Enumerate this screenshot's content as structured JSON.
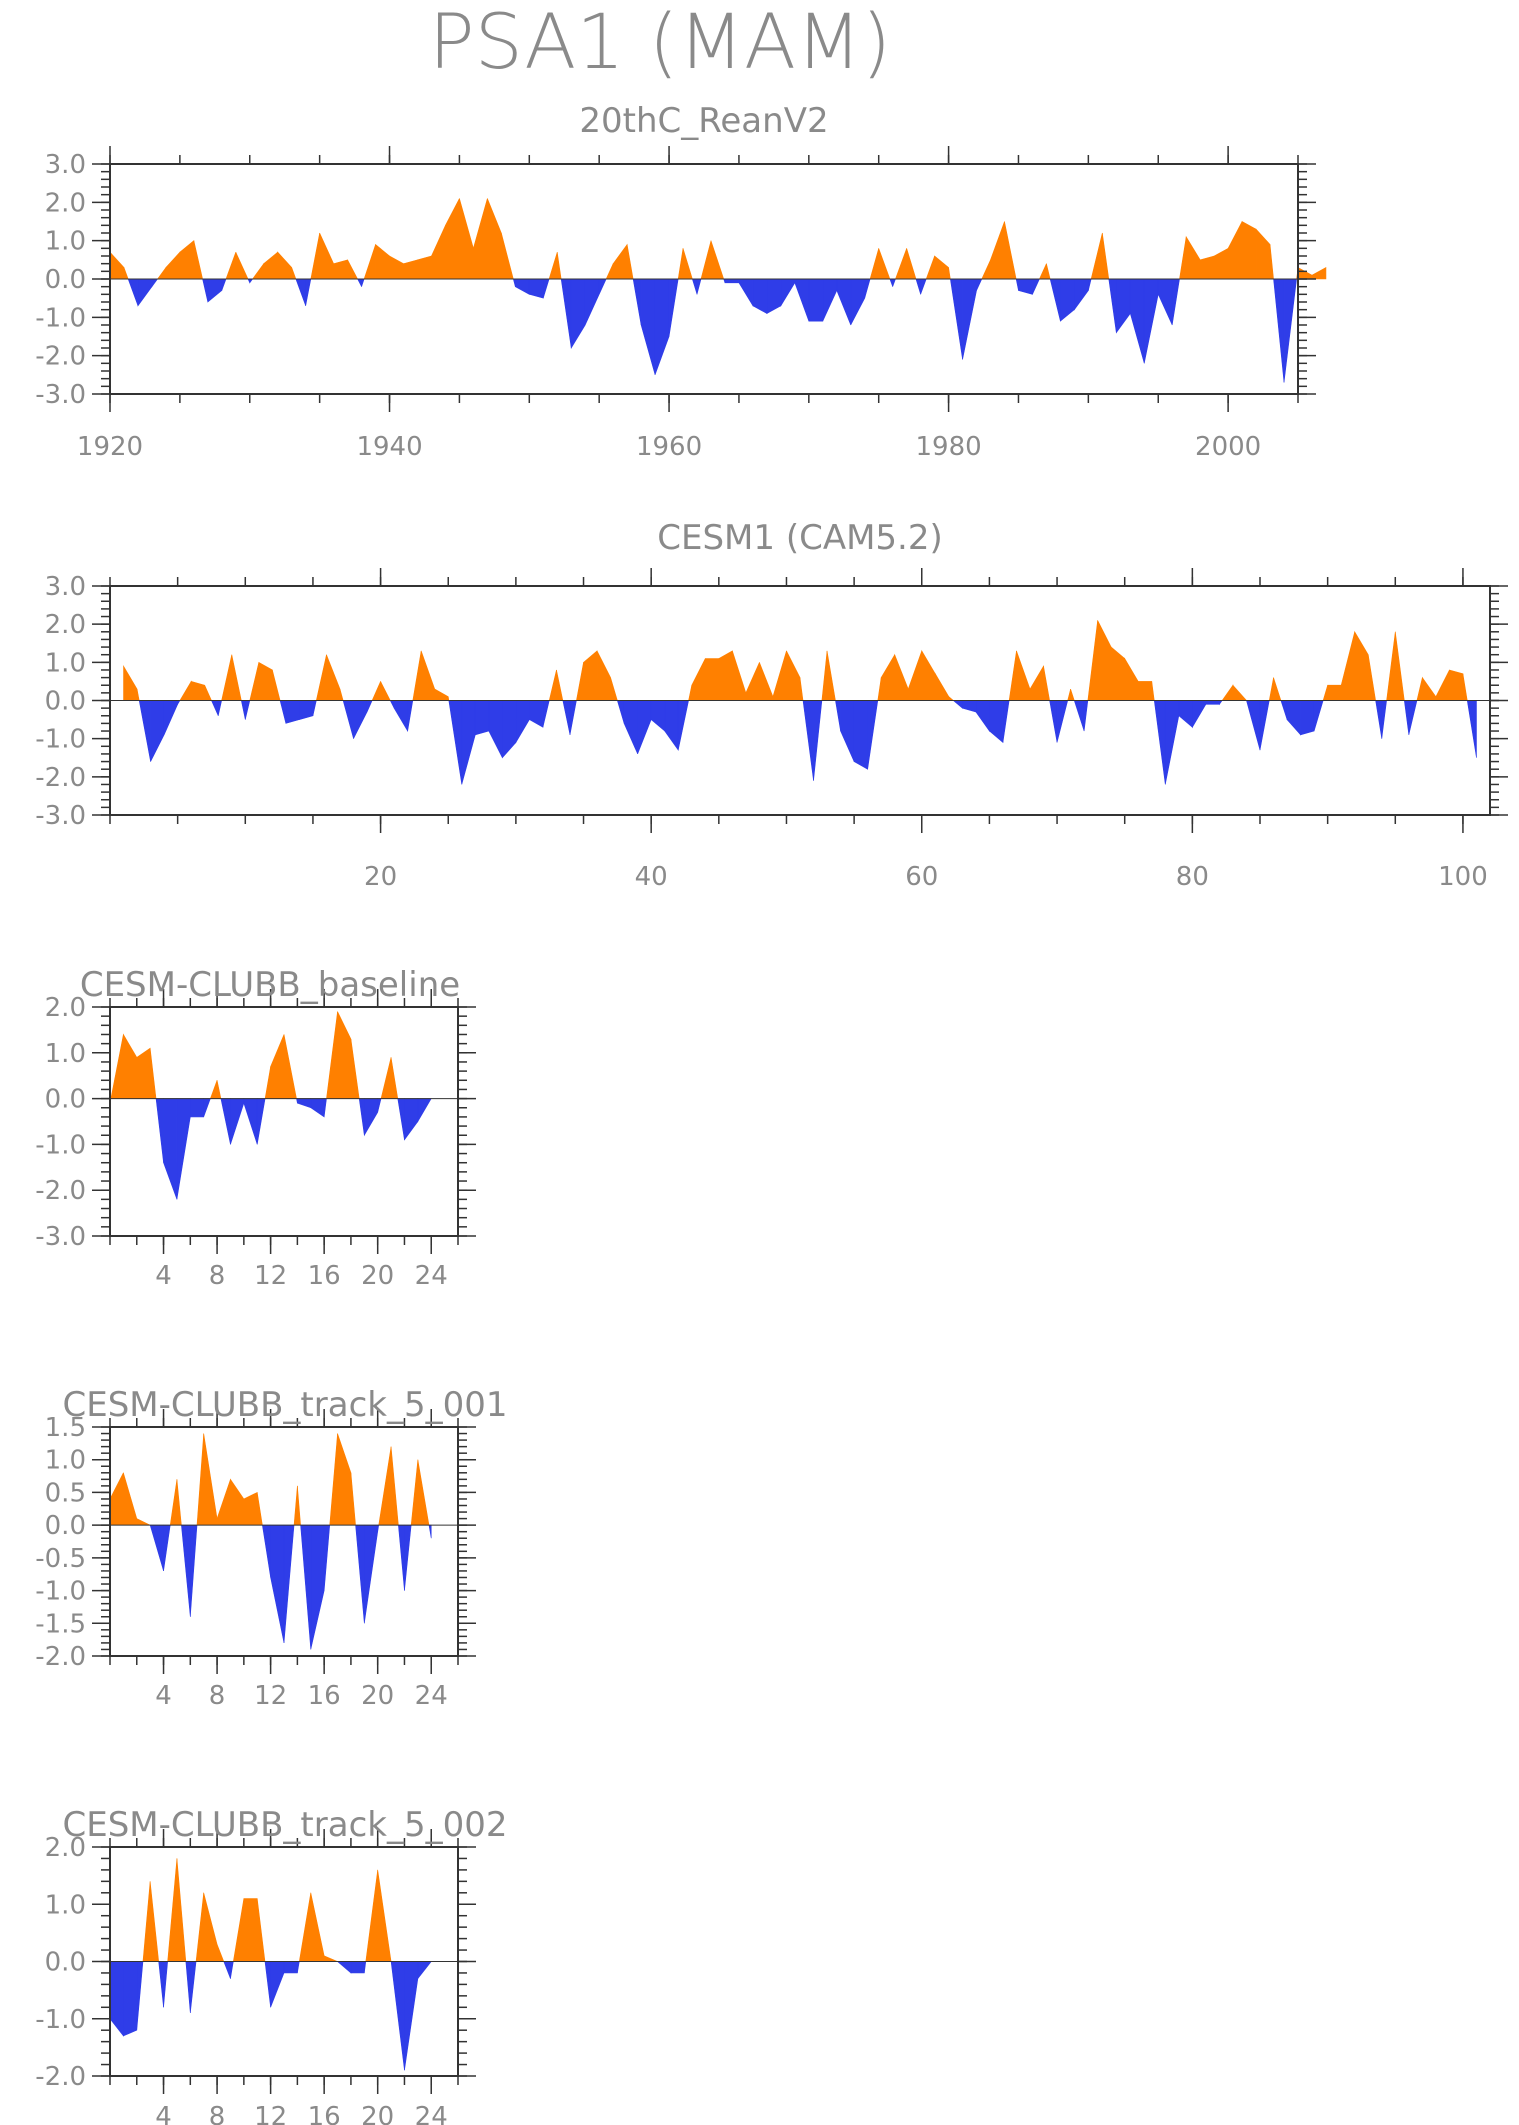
{
  "title": "PSA1 (MAM)",
  "colors": {
    "positive": "#ff8000",
    "negative": "#2f3de8",
    "axis": "#333333",
    "text": "#8a8a8a"
  },
  "chart_data": [
    {
      "type": "area",
      "title": "20thC_ReanV2",
      "x_start": 1920,
      "xlim": [
        1920,
        2005
      ],
      "ylim": [
        -3.0,
        3.0
      ],
      "yticks": [
        "3.0",
        "2.0",
        "1.0",
        "0.0",
        "-1.0",
        "-2.0",
        "-3.0"
      ],
      "xticks": [
        "1920",
        "1940",
        "1960",
        "1980",
        "2000"
      ],
      "values": [
        0.7,
        0.3,
        -0.7,
        -0.2,
        0.3,
        0.7,
        1.0,
        -0.6,
        -0.3,
        0.7,
        -0.1,
        0.4,
        0.7,
        0.3,
        -0.7,
        1.2,
        0.4,
        0.5,
        -0.2,
        0.9,
        0.6,
        0.4,
        0.5,
        0.6,
        1.4,
        2.1,
        0.8,
        2.1,
        1.2,
        -0.2,
        -0.4,
        -0.5,
        0.7,
        -1.8,
        -1.2,
        -0.4,
        0.4,
        0.9,
        -1.2,
        -2.5,
        -1.5,
        0.8,
        -0.4,
        1.0,
        -0.1,
        -0.1,
        -0.7,
        -0.9,
        -0.7,
        -0.1,
        -1.1,
        -1.1,
        -0.3,
        -1.2,
        -0.5,
        0.8,
        -0.2,
        0.8,
        -0.4,
        0.6,
        0.3,
        -2.1,
        -0.3,
        0.5,
        1.5,
        -0.3,
        -0.4,
        0.4,
        -1.1,
        -0.8,
        -0.3,
        1.2,
        -1.4,
        -0.9,
        -2.2,
        -0.4,
        -1.2,
        1.1,
        0.5,
        0.6,
        0.8,
        1.5,
        1.3,
        0.9,
        -2.7,
        0.3,
        0.1,
        0.3
      ]
    },
    {
      "type": "area",
      "title": "CESM1 (CAM5.2)",
      "x_start": 1,
      "xlim": [
        0,
        102
      ],
      "ylim": [
        -3.0,
        3.0
      ],
      "yticks": [
        "3.0",
        "2.0",
        "1.0",
        "0.0",
        "-1.0",
        "-2.0",
        "-3.0"
      ],
      "xticks": [
        "20",
        "40",
        "60",
        "80",
        "100"
      ],
      "values": [
        0.9,
        0.3,
        -1.6,
        -0.9,
        -0.1,
        0.5,
        0.4,
        -0.4,
        1.2,
        -0.5,
        1.0,
        0.8,
        -0.6,
        -0.5,
        -0.4,
        1.2,
        0.3,
        -1.0,
        -0.3,
        0.5,
        -0.2,
        -0.8,
        1.3,
        0.3,
        0.1,
        -2.2,
        -0.9,
        -0.8,
        -1.5,
        -1.1,
        -0.5,
        -0.7,
        0.8,
        -0.9,
        1.0,
        1.3,
        0.6,
        -0.6,
        -1.4,
        -0.5,
        -0.8,
        -1.3,
        0.4,
        1.1,
        1.1,
        1.3,
        0.2,
        1.0,
        0.1,
        1.3,
        0.6,
        -2.1,
        1.3,
        -0.8,
        -1.6,
        -1.8,
        0.6,
        1.2,
        0.3,
        1.3,
        0.7,
        0.1,
        -0.2,
        -0.3,
        -0.8,
        -1.1,
        1.3,
        0.3,
        0.9,
        -1.1,
        0.3,
        -0.8,
        2.1,
        1.4,
        1.1,
        0.5,
        0.5,
        -2.2,
        -0.4,
        -0.7,
        -0.1,
        -0.1,
        0.4,
        0.0,
        -1.3,
        0.6,
        -0.5,
        -0.9,
        -0.8,
        0.4,
        0.4,
        1.8,
        1.2,
        -1.0,
        1.8,
        -0.9,
        0.6,
        0.1,
        0.8,
        0.7,
        -1.5
      ]
    },
    {
      "type": "area",
      "title": "CESM-CLUBB_baseline",
      "x_start": 0,
      "xlim": [
        0,
        26
      ],
      "ylim": [
        -3.0,
        2.0
      ],
      "yticks": [
        "2.0",
        "1.0",
        "0.0",
        "-1.0",
        "-2.0",
        "-3.0"
      ],
      "xticks": [
        "4",
        "8",
        "12",
        "16",
        "20",
        "24"
      ],
      "values": [
        -0.1,
        1.4,
        0.9,
        1.1,
        -1.4,
        -2.2,
        -0.4,
        -0.4,
        0.4,
        -1.0,
        -0.1,
        -1.0,
        0.7,
        1.4,
        -0.1,
        -0.2,
        -0.4,
        1.9,
        1.3,
        -0.8,
        -0.3,
        0.9,
        -0.9,
        -0.5,
        0.0
      ]
    },
    {
      "type": "area",
      "title": "CESM-CLUBB_track_5_001",
      "x_start": 0,
      "xlim": [
        0,
        26
      ],
      "ylim": [
        -2.0,
        1.5
      ],
      "yticks": [
        "1.5",
        "1.0",
        "0.5",
        "0.0",
        "-0.5",
        "-1.0",
        "-1.5",
        "-2.0"
      ],
      "xticks": [
        "4",
        "8",
        "12",
        "16",
        "20",
        "24"
      ],
      "values": [
        0.4,
        0.8,
        0.1,
        0.0,
        -0.7,
        0.7,
        -1.4,
        1.4,
        0.1,
        0.7,
        0.4,
        0.5,
        -0.8,
        -1.8,
        0.6,
        -1.9,
        -1.0,
        1.4,
        0.8,
        -1.5,
        -0.1,
        1.2,
        -1.0,
        1.0,
        -0.2
      ]
    },
    {
      "type": "area",
      "title": "CESM-CLUBB_track_5_002",
      "x_start": 0,
      "xlim": [
        0,
        26
      ],
      "ylim": [
        -2.0,
        2.0
      ],
      "yticks": [
        "2.0",
        "1.0",
        "0.0",
        "-1.0",
        "-2.0"
      ],
      "xticks": [
        "4",
        "8",
        "12",
        "16",
        "20",
        "24"
      ],
      "values": [
        -1.0,
        -1.3,
        -1.2,
        1.4,
        -0.8,
        1.8,
        -0.9,
        1.2,
        0.3,
        -0.3,
        1.1,
        1.1,
        -0.8,
        -0.2,
        -0.2,
        1.2,
        0.1,
        0.0,
        -0.2,
        -0.2,
        1.6,
        0.0,
        -1.9,
        -0.3,
        0.0
      ]
    }
  ]
}
